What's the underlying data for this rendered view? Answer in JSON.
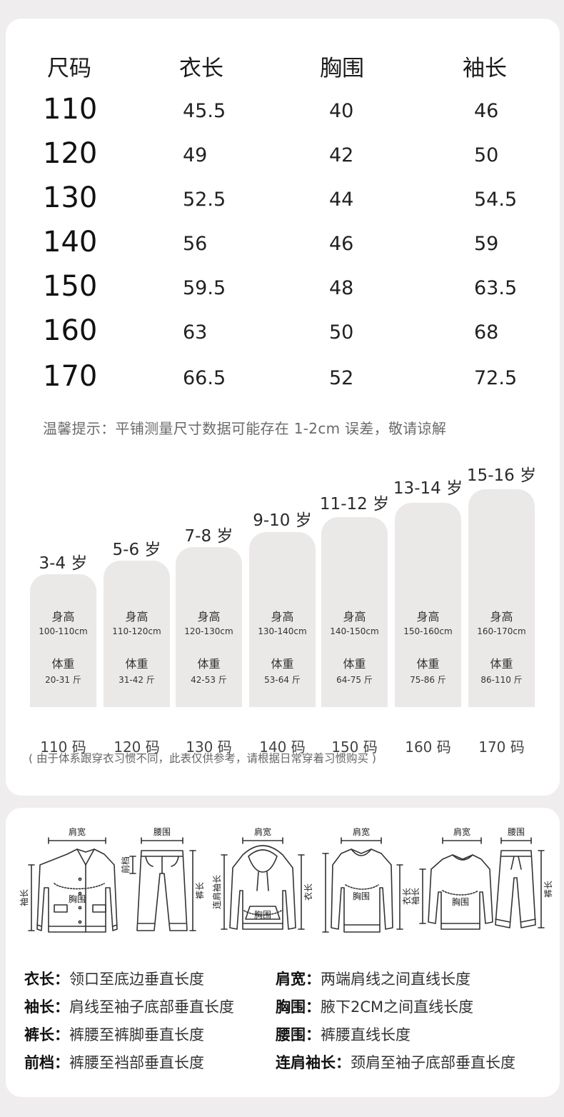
{
  "size_table": {
    "headers": [
      "尺码",
      "衣长",
      "胸围",
      "袖长"
    ],
    "rows": [
      {
        "size": "110",
        "length": "45.5",
        "chest": "40",
        "sleeve": "46"
      },
      {
        "size": "120",
        "length": "49",
        "chest": "42",
        "sleeve": "50"
      },
      {
        "size": "130",
        "length": "52.5",
        "chest": "44",
        "sleeve": "54.5"
      },
      {
        "size": "140",
        "length": "56",
        "chest": "46",
        "sleeve": "59"
      },
      {
        "size": "150",
        "length": "59.5",
        "chest": "48",
        "sleeve": "63.5"
      },
      {
        "size": "160",
        "length": "63",
        "chest": "50",
        "sleeve": "68"
      },
      {
        "size": "170",
        "length": "66.5",
        "chest": "52",
        "sleeve": "72.5"
      }
    ],
    "tip": "温馨提示：平铺测量尺寸数据可能存在 1-2cm 误差，敬请谅解"
  },
  "age_chart": {
    "height_label": "身高",
    "weight_label": "体重",
    "columns": [
      {
        "age": "3-4 岁",
        "height": "100-110cm",
        "weight": "20-31 斤",
        "code": "110 码"
      },
      {
        "age": "5-6 岁",
        "height": "110-120cm",
        "weight": "31-42 斤",
        "code": "120 码"
      },
      {
        "age": "7-8 岁",
        "height": "120-130cm",
        "weight": "42-53 斤",
        "code": "130 码"
      },
      {
        "age": "9-10 岁",
        "height": "130-140cm",
        "weight": "53-64 斤",
        "code": "140 码"
      },
      {
        "age": "11-12 岁",
        "height": "140-150cm",
        "weight": "64-75 斤",
        "code": "150 码"
      },
      {
        "age": "13-14 岁",
        "height": "150-160cm",
        "weight": "75-86 斤",
        "code": "160 码"
      },
      {
        "age": "15-16 岁",
        "height": "160-170cm",
        "weight": "86-110 斤",
        "code": "170 码"
      }
    ],
    "note": "( 由于体系跟穿衣习惯不同，此表仅供参考，请根据日常穿着习惯购买 )"
  },
  "diagram_labels": {
    "shoulder": "肩宽",
    "waist": "腰围",
    "chest": "胸围",
    "sleeve": "袖长",
    "front_rise": "前档",
    "pants_length": "裤长",
    "raglan_sleeve": "连肩袖长",
    "garment_length": "衣长"
  },
  "definitions": [
    {
      "term": "衣长",
      "desc": "领口至底边垂直长度"
    },
    {
      "term": "肩宽",
      "desc": "两端肩线之间直线长度"
    },
    {
      "term": "袖长",
      "desc": "肩线至袖子底部垂直长度"
    },
    {
      "term": "胸围",
      "desc": "腋下2CM之间直线长度"
    },
    {
      "term": "裤长",
      "desc": "裤腰至裤脚垂直长度"
    },
    {
      "term": "腰围",
      "desc": "裤腰直线长度"
    },
    {
      "term": "前档",
      "desc": "裤腰至裆部垂直长度"
    },
    {
      "term": "连肩袖长",
      "desc": "颈肩至袖子底部垂直长度"
    }
  ]
}
